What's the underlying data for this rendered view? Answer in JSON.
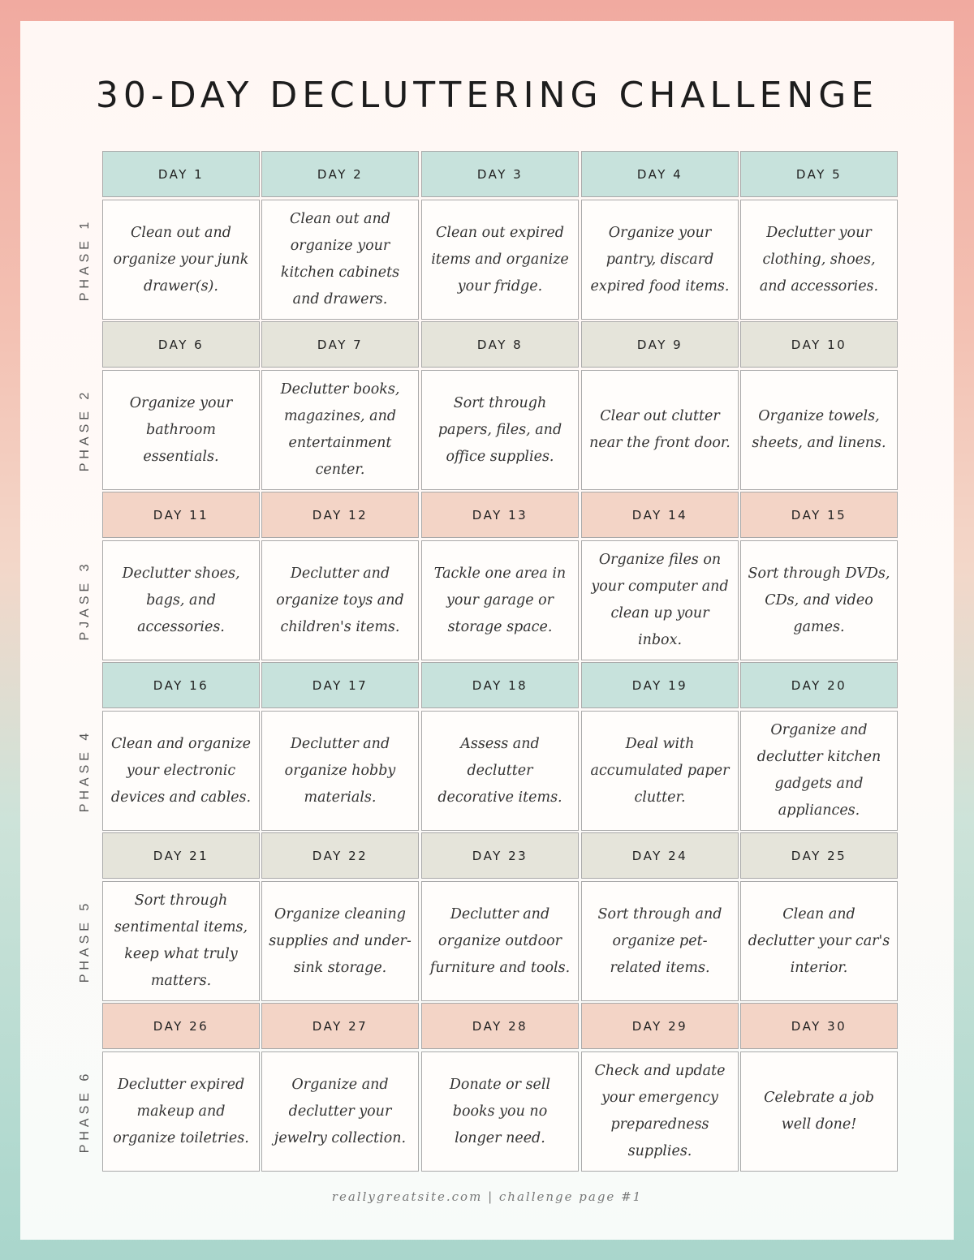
{
  "title": "30-DAY DECLUTTERING CHALLENGE",
  "phases": [
    {
      "label": "PHASE 1",
      "header_color": "#c7e2dc",
      "days": [
        {
          "day": "DAY 1",
          "task": "Clean out and organize your junk drawer(s)."
        },
        {
          "day": "DAY 2",
          "task": "Clean out and organize your kitchen cabinets and drawers."
        },
        {
          "day": "DAY 3",
          "task": "Clean out expired items and organize your fridge."
        },
        {
          "day": "DAY 4",
          "task": "Organize your pantry, discard expired food items."
        },
        {
          "day": "DAY 5",
          "task": "Declutter your clothing, shoes, and accessories."
        }
      ]
    },
    {
      "label": "PHASE 2",
      "header_color": "#e5e4da",
      "days": [
        {
          "day": "DAY 6",
          "task": "Organize your bathroom essentials."
        },
        {
          "day": "DAY 7",
          "task": "Declutter books, magazines, and entertainment center."
        },
        {
          "day": "DAY 8",
          "task": "Sort through papers, files, and office supplies."
        },
        {
          "day": "DAY 9",
          "task": "Clear out clutter near the front door."
        },
        {
          "day": "DAY 10",
          "task": "Organize towels, sheets, and linens."
        }
      ]
    },
    {
      "label": "PJASE 3",
      "header_color": "#f3d4c6",
      "days": [
        {
          "day": "DAY 11",
          "task": "Declutter shoes, bags, and accessories."
        },
        {
          "day": "DAY 12",
          "task": "Declutter and organize toys and children's items."
        },
        {
          "day": "DAY 13",
          "task": "Tackle one area in your garage or storage space."
        },
        {
          "day": "DAY 14",
          "task": "Organize files on your computer and clean up your inbox."
        },
        {
          "day": "DAY 15",
          "task": "Sort through DVDs, CDs, and video games."
        }
      ]
    },
    {
      "label": "PHASE 4",
      "header_color": "#c7e2dc",
      "days": [
        {
          "day": "DAY 16",
          "task": "Clean and organize your electronic devices and cables."
        },
        {
          "day": "DAY 17",
          "task": "Declutter and organize hobby materials."
        },
        {
          "day": "DAY 18",
          "task": "Assess and declutter decorative items."
        },
        {
          "day": "DAY 19",
          "task": "Deal with accumulated paper clutter."
        },
        {
          "day": "DAY 20",
          "task": "Organize and declutter kitchen gadgets and appliances."
        }
      ]
    },
    {
      "label": "PHASE 5",
      "header_color": "#e5e4da",
      "days": [
        {
          "day": "DAY 21",
          "task": "Sort through sentimental items, keep what truly matters."
        },
        {
          "day": "DAY 22",
          "task": "Organize cleaning supplies and under-sink storage."
        },
        {
          "day": "DAY 23",
          "task": "Declutter and organize outdoor furniture and tools."
        },
        {
          "day": "DAY 24",
          "task": "Sort through and organize pet-related items."
        },
        {
          "day": "DAY 25",
          "task": "Clean and declutter your car's interior."
        }
      ]
    },
    {
      "label": "PHASE 6",
      "header_color": "#f3d4c6",
      "days": [
        {
          "day": "DAY 26",
          "task": "Declutter expired makeup and organize toiletries."
        },
        {
          "day": "DAY 27",
          "task": "Organize and declutter your jewelry collection."
        },
        {
          "day": "DAY 28",
          "task": "Donate or sell books you no longer need."
        },
        {
          "day": "DAY 29",
          "task": "Check and update your emergency preparedness supplies."
        },
        {
          "day": "DAY 30",
          "task": "Celebrate a job well done!"
        }
      ]
    }
  ],
  "footer": "reallygreatsite.com | challenge page #1"
}
